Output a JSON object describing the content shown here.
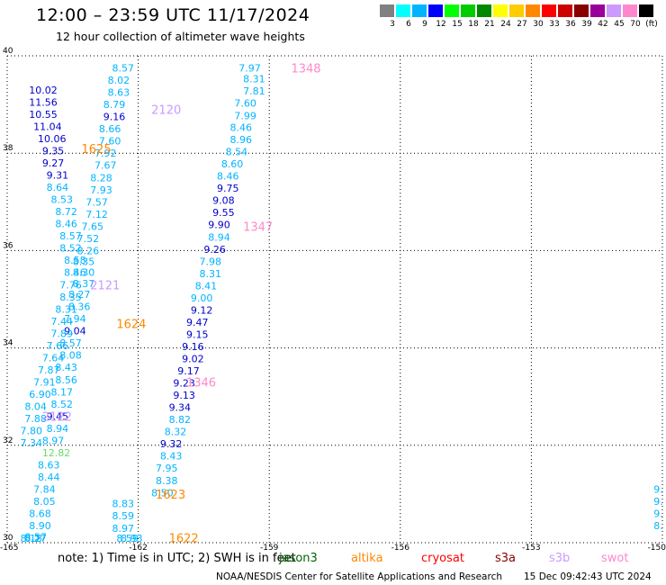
{
  "title": "12:00 – 23:59 UTC 11/17/2024",
  "subtitle": "12 hour collection of altimeter wave heights",
  "colorbar": {
    "colors": [
      "#808080",
      "#00ffff",
      "#00b4ff",
      "#0000ff",
      "#00ff00",
      "#00cc00",
      "#008800",
      "#ffff00",
      "#ffcc00",
      "#ff8800",
      "#ff0000",
      "#cc0000",
      "#880000",
      "#990099",
      "#cc99ff",
      "#ff88cc",
      "#000000"
    ],
    "labels": [
      "3",
      "6",
      "9",
      "12",
      "15",
      "18",
      "21",
      "24",
      "27",
      "30",
      "33",
      "36",
      "39",
      "42",
      "45",
      "70",
      "(ft)"
    ]
  },
  "map": {
    "lat_min": 30,
    "lat_max": 40,
    "lon_min": -165,
    "lon_max": -150,
    "lat_ticks": [
      "40",
      "38",
      "36",
      "34",
      "32",
      "30"
    ],
    "lon_ticks": [
      "-165",
      "-162",
      "-159",
      "-156",
      "-153",
      "-150"
    ]
  },
  "tracks": [
    {
      "label": "1348",
      "color": "#ff88cc",
      "lon": -158.5,
      "lat": 39.75
    },
    {
      "label": "2120",
      "color": "#cc99ff",
      "lon": -161.7,
      "lat": 38.9
    },
    {
      "label": "1625",
      "color": "#ff8800",
      "lon": -163.3,
      "lat": 38.1
    },
    {
      "label": "1347",
      "color": "#ff88cc",
      "lon": -159.6,
      "lat": 36.5
    },
    {
      "label": "2121",
      "color": "#cc99ff",
      "lon": -163.1,
      "lat": 35.3
    },
    {
      "label": "1624",
      "color": "#ff8800",
      "lon": -162.5,
      "lat": 34.5
    },
    {
      "label": "1346",
      "color": "#ff88cc",
      "lon": -160.9,
      "lat": 33.3
    },
    {
      "label": "2122",
      "color": "#cc99ff",
      "lon": -164.2,
      "lat": 32.6
    },
    {
      "label": "1623",
      "color": "#ff8800",
      "lon": -161.6,
      "lat": 31.0
    },
    {
      "label": "1622",
      "color": "#ff8800",
      "lon": -161.3,
      "lat": 30.1
    }
  ],
  "chart_data": {
    "type": "scatter",
    "title": "12:00 – 23:59 UTC 11/17/2024",
    "xlim": [
      -165,
      -150
    ],
    "ylim": [
      30,
      40
    ],
    "points": [
      {
        "v": "7.97",
        "lon": -159.7,
        "lat": 39.75,
        "c": "#00b4ff"
      },
      {
        "v": "8.31",
        "lon": -159.6,
        "lat": 39.53,
        "c": "#00b4ff"
      },
      {
        "v": "7.81",
        "lon": -159.6,
        "lat": 39.28,
        "c": "#00b4ff"
      },
      {
        "v": "7.60",
        "lon": -159.8,
        "lat": 39.03,
        "c": "#00b4ff"
      },
      {
        "v": "7.99",
        "lon": -159.8,
        "lat": 38.77,
        "c": "#00b4ff"
      },
      {
        "v": "8.46",
        "lon": -159.9,
        "lat": 38.53,
        "c": "#00b4ff"
      },
      {
        "v": "8.96",
        "lon": -159.9,
        "lat": 38.28,
        "c": "#00b4ff"
      },
      {
        "v": "8.54",
        "lon": -160.0,
        "lat": 38.03,
        "c": "#00b4ff"
      },
      {
        "v": "8.60",
        "lon": -160.1,
        "lat": 37.78,
        "c": "#00b4ff"
      },
      {
        "v": "8.46",
        "lon": -160.2,
        "lat": 37.53,
        "c": "#00b4ff"
      },
      {
        "v": "9.75",
        "lon": -160.2,
        "lat": 37.28,
        "c": "#0000cc"
      },
      {
        "v": "9.08",
        "lon": -160.3,
        "lat": 37.03,
        "c": "#0000cc"
      },
      {
        "v": "9.55",
        "lon": -160.3,
        "lat": 36.78,
        "c": "#0000cc"
      },
      {
        "v": "9.90",
        "lon": -160.4,
        "lat": 36.53,
        "c": "#0000cc"
      },
      {
        "v": "8.94",
        "lon": -160.4,
        "lat": 36.28,
        "c": "#00b4ff"
      },
      {
        "v": "9.26",
        "lon": -160.5,
        "lat": 36.03,
        "c": "#0000cc"
      },
      {
        "v": "7.98",
        "lon": -160.6,
        "lat": 35.78,
        "c": "#00b4ff"
      },
      {
        "v": "8.31",
        "lon": -160.6,
        "lat": 35.53,
        "c": "#00b4ff"
      },
      {
        "v": "8.41",
        "lon": -160.7,
        "lat": 35.28,
        "c": "#00b4ff"
      },
      {
        "v": "9.00",
        "lon": -160.8,
        "lat": 35.03,
        "c": "#00b4ff"
      },
      {
        "v": "9.12",
        "lon": -160.8,
        "lat": 34.78,
        "c": "#0000cc"
      },
      {
        "v": "9.47",
        "lon": -160.9,
        "lat": 34.53,
        "c": "#0000cc"
      },
      {
        "v": "9.15",
        "lon": -160.9,
        "lat": 34.28,
        "c": "#0000cc"
      },
      {
        "v": "9.16",
        "lon": -161.0,
        "lat": 34.03,
        "c": "#0000cc"
      },
      {
        "v": "9.02",
        "lon": -161.0,
        "lat": 33.78,
        "c": "#0000cc"
      },
      {
        "v": "9.17",
        "lon": -161.1,
        "lat": 33.53,
        "c": "#0000cc"
      },
      {
        "v": "9.23",
        "lon": -161.2,
        "lat": 33.28,
        "c": "#0000cc"
      },
      {
        "v": "9.13",
        "lon": -161.2,
        "lat": 33.03,
        "c": "#0000cc"
      },
      {
        "v": "9.34",
        "lon": -161.3,
        "lat": 32.78,
        "c": "#0000cc"
      },
      {
        "v": "8.82",
        "lon": -161.3,
        "lat": 32.53,
        "c": "#00b4ff"
      },
      {
        "v": "8.32",
        "lon": -161.4,
        "lat": 32.28,
        "c": "#00b4ff"
      },
      {
        "v": "9.32",
        "lon": -161.5,
        "lat": 32.03,
        "c": "#0000cc"
      },
      {
        "v": "8.43",
        "lon": -161.5,
        "lat": 31.78,
        "c": "#00b4ff"
      },
      {
        "v": "7.95",
        "lon": -161.6,
        "lat": 31.53,
        "c": "#00b4ff"
      },
      {
        "v": "8.38",
        "lon": -161.6,
        "lat": 31.28,
        "c": "#00b4ff"
      },
      {
        "v": "8.50",
        "lon": -161.7,
        "lat": 31.03,
        "c": "#00b4ff"
      },
      {
        "v": "8.57",
        "lon": -162.6,
        "lat": 39.75,
        "c": "#00b4ff"
      },
      {
        "v": "8.02",
        "lon": -162.7,
        "lat": 39.5,
        "c": "#00b4ff"
      },
      {
        "v": "8.63",
        "lon": -162.7,
        "lat": 39.25,
        "c": "#00b4ff"
      },
      {
        "v": "8.79",
        "lon": -162.8,
        "lat": 39.0,
        "c": "#00b4ff"
      },
      {
        "v": "9.16",
        "lon": -162.8,
        "lat": 38.75,
        "c": "#0000cc"
      },
      {
        "v": "8.66",
        "lon": -162.9,
        "lat": 38.5,
        "c": "#00b4ff"
      },
      {
        "v": "7.60",
        "lon": -162.9,
        "lat": 38.25,
        "c": "#00b4ff"
      },
      {
        "v": "7.92",
        "lon": -163.0,
        "lat": 38.0,
        "c": "#00b4ff"
      },
      {
        "v": "7.67",
        "lon": -163.0,
        "lat": 37.75,
        "c": "#00b4ff"
      },
      {
        "v": "8.28",
        "lon": -163.1,
        "lat": 37.5,
        "c": "#00b4ff"
      },
      {
        "v": "7.93",
        "lon": -163.1,
        "lat": 37.25,
        "c": "#00b4ff"
      },
      {
        "v": "7.57",
        "lon": -163.2,
        "lat": 37.0,
        "c": "#00b4ff"
      },
      {
        "v": "7.12",
        "lon": -163.2,
        "lat": 36.75,
        "c": "#00b4ff"
      },
      {
        "v": "7.65",
        "lon": -163.3,
        "lat": 36.5,
        "c": "#00b4ff"
      },
      {
        "v": "7.52",
        "lon": -163.4,
        "lat": 36.25,
        "c": "#00b4ff"
      },
      {
        "v": "8.26",
        "lon": -163.4,
        "lat": 36.0,
        "c": "#00b4ff"
      },
      {
        "v": "8.35",
        "lon": -163.5,
        "lat": 35.78,
        "c": "#00b4ff"
      },
      {
        "v": "8.30",
        "lon": -163.5,
        "lat": 35.55,
        "c": "#00b4ff"
      },
      {
        "v": "8.37",
        "lon": -163.5,
        "lat": 35.32,
        "c": "#00b4ff"
      },
      {
        "v": "8.27",
        "lon": -163.6,
        "lat": 35.1,
        "c": "#00b4ff"
      },
      {
        "v": "8.36",
        "lon": -163.6,
        "lat": 34.85,
        "c": "#00b4ff"
      },
      {
        "v": "7.94",
        "lon": -163.7,
        "lat": 34.6,
        "c": "#00b4ff"
      },
      {
        "v": "9.04",
        "lon": -163.7,
        "lat": 34.35,
        "c": "#0000cc"
      },
      {
        "v": "8.57",
        "lon": -163.8,
        "lat": 34.1,
        "c": "#00b4ff"
      },
      {
        "v": "8.08",
        "lon": -163.8,
        "lat": 33.85,
        "c": "#00b4ff"
      },
      {
        "v": "8.43",
        "lon": -163.9,
        "lat": 33.6,
        "c": "#00b4ff"
      },
      {
        "v": "8.56",
        "lon": -163.9,
        "lat": 33.35,
        "c": "#00b4ff"
      },
      {
        "v": "8.17",
        "lon": -164.0,
        "lat": 33.1,
        "c": "#00b4ff"
      },
      {
        "v": "8.52",
        "lon": -164.0,
        "lat": 32.85,
        "c": "#00b4ff"
      },
      {
        "v": "9.45",
        "lon": -164.1,
        "lat": 32.6,
        "c": "#0000cc"
      },
      {
        "v": "8.94",
        "lon": -164.1,
        "lat": 32.35,
        "c": "#00b4ff"
      },
      {
        "v": "8.97",
        "lon": -164.2,
        "lat": 32.1,
        "c": "#00b4ff"
      },
      {
        "v": "12.82",
        "lon": -164.2,
        "lat": 31.85,
        "c": "#66dd66"
      },
      {
        "v": "8.63",
        "lon": -164.3,
        "lat": 31.6,
        "c": "#00b4ff"
      },
      {
        "v": "8.44",
        "lon": -164.3,
        "lat": 31.35,
        "c": "#00b4ff"
      },
      {
        "v": "7.84",
        "lon": -164.4,
        "lat": 31.1,
        "c": "#00b4ff"
      },
      {
        "v": "8.05",
        "lon": -164.4,
        "lat": 30.85,
        "c": "#00b4ff"
      },
      {
        "v": "8.68",
        "lon": -164.5,
        "lat": 30.6,
        "c": "#00b4ff"
      },
      {
        "v": "8.90",
        "lon": -164.5,
        "lat": 30.35,
        "c": "#00b4ff"
      },
      {
        "v": "8.57",
        "lon": -164.6,
        "lat": 30.12,
        "c": "#00b4ff"
      },
      {
        "v": "8.27",
        "lon": -164.6,
        "lat": 29.9,
        "c": "#00b4ff"
      },
      {
        "v": "8.18",
        "lon": -164.7,
        "lat": 29.7,
        "c": "#00b4ff"
      },
      {
        "v": "10.02",
        "lon": -164.5,
        "lat": 39.3,
        "c": "#0000cc"
      },
      {
        "v": "11.56",
        "lon": -164.5,
        "lat": 39.05,
        "c": "#0000cc"
      },
      {
        "v": "10.55",
        "lon": -164.5,
        "lat": 38.8,
        "c": "#0000cc"
      },
      {
        "v": "11.04",
        "lon": -164.4,
        "lat": 38.55,
        "c": "#0000cc"
      },
      {
        "v": "10.06",
        "lon": -164.3,
        "lat": 38.3,
        "c": "#0000cc"
      },
      {
        "v": "9.35",
        "lon": -164.2,
        "lat": 38.05,
        "c": "#0000cc"
      },
      {
        "v": "9.27",
        "lon": -164.2,
        "lat": 37.8,
        "c": "#0000cc"
      },
      {
        "v": "9.31",
        "lon": -164.1,
        "lat": 37.55,
        "c": "#0000cc"
      },
      {
        "v": "8.64",
        "lon": -164.1,
        "lat": 37.3,
        "c": "#00b4ff"
      },
      {
        "v": "8.53",
        "lon": -164.0,
        "lat": 37.05,
        "c": "#00b4ff"
      },
      {
        "v": "8.72",
        "lon": -163.9,
        "lat": 36.8,
        "c": "#00b4ff"
      },
      {
        "v": "8.46",
        "lon": -163.9,
        "lat": 36.55,
        "c": "#00b4ff"
      },
      {
        "v": "8.57",
        "lon": -163.8,
        "lat": 36.3,
        "c": "#00b4ff"
      },
      {
        "v": "8.52",
        "lon": -163.8,
        "lat": 36.05,
        "c": "#00b4ff"
      },
      {
        "v": "8.58",
        "lon": -163.7,
        "lat": 35.8,
        "c": "#00b4ff"
      },
      {
        "v": "8.46",
        "lon": -163.7,
        "lat": 35.55,
        "c": "#00b4ff"
      },
      {
        "v": "7.76",
        "lon": -163.8,
        "lat": 35.3,
        "c": "#00b4ff"
      },
      {
        "v": "8.35",
        "lon": -163.8,
        "lat": 35.05,
        "c": "#00b4ff"
      },
      {
        "v": "8.31",
        "lon": -163.9,
        "lat": 34.8,
        "c": "#00b4ff"
      },
      {
        "v": "7.44",
        "lon": -164.0,
        "lat": 34.55,
        "c": "#00b4ff"
      },
      {
        "v": "7.89",
        "lon": -164.0,
        "lat": 34.3,
        "c": "#00b4ff"
      },
      {
        "v": "7.66",
        "lon": -164.1,
        "lat": 34.05,
        "c": "#00b4ff"
      },
      {
        "v": "7.64",
        "lon": -164.2,
        "lat": 33.8,
        "c": "#00b4ff"
      },
      {
        "v": "7.87",
        "lon": -164.3,
        "lat": 33.55,
        "c": "#00b4ff"
      },
      {
        "v": "7.91",
        "lon": -164.4,
        "lat": 33.3,
        "c": "#00b4ff"
      },
      {
        "v": "6.90",
        "lon": -164.5,
        "lat": 33.05,
        "c": "#00b4ff"
      },
      {
        "v": "8.04",
        "lon": -164.6,
        "lat": 32.8,
        "c": "#00b4ff"
      },
      {
        "v": "7.88",
        "lon": -164.6,
        "lat": 32.55,
        "c": "#00b4ff"
      },
      {
        "v": "7.80",
        "lon": -164.7,
        "lat": 32.3,
        "c": "#00b4ff"
      },
      {
        "v": "7.34",
        "lon": -164.7,
        "lat": 32.05,
        "c": "#00b4ff"
      },
      {
        "v": "8.83",
        "lon": -162.6,
        "lat": 30.8,
        "c": "#00b4ff"
      },
      {
        "v": "8.59",
        "lon": -162.6,
        "lat": 30.55,
        "c": "#00b4ff"
      },
      {
        "v": "8.97",
        "lon": -162.6,
        "lat": 30.3,
        "c": "#00b4ff"
      },
      {
        "v": "8.59",
        "lon": -162.5,
        "lat": 30.05,
        "c": "#00b4ff"
      },
      {
        "v": "8.93",
        "lon": -162.4,
        "lat": 29.82,
        "c": "#00b4ff"
      },
      {
        "v": "9.",
        "lon": -150.2,
        "lat": 31.1,
        "c": "#00b4ff"
      },
      {
        "v": "9.",
        "lon": -150.2,
        "lat": 30.85,
        "c": "#00b4ff"
      },
      {
        "v": "9.",
        "lon": -150.2,
        "lat": 30.6,
        "c": "#00b4ff"
      },
      {
        "v": "8.",
        "lon": -150.2,
        "lat": 30.35,
        "c": "#00b4ff"
      }
    ]
  },
  "note": "note:  1) Time is in UTC; 2) SWH is in feet",
  "legend": [
    {
      "label": "jason3",
      "color": "#006600"
    },
    {
      "label": "altika",
      "color": "#ff8800"
    },
    {
      "label": "cryosat",
      "color": "#ff0000"
    },
    {
      "label": "s3a",
      "color": "#880000"
    },
    {
      "label": "s3b",
      "color": "#cc99ff"
    },
    {
      "label": "swot",
      "color": "#ff88cc"
    }
  ],
  "footer": "NOAA/NESDIS Center for Satellite Applications and Research",
  "footer_time": "15 Dec 09:42:43 UTC 2024"
}
